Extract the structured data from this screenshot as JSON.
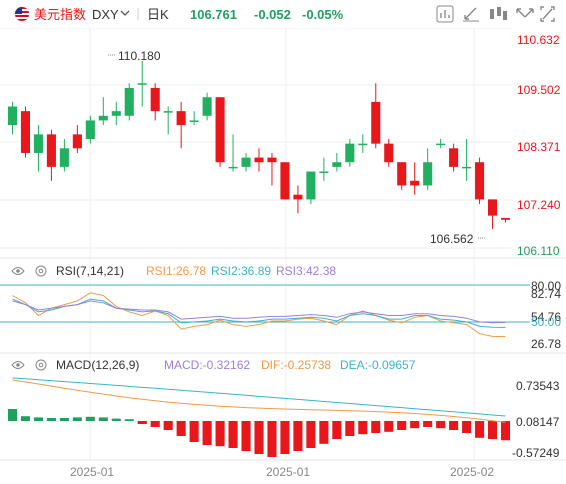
{
  "header": {
    "instrument_name": "美元指数",
    "symbol": "DXY",
    "period": "日K",
    "price": "106.761",
    "change": "-0.052",
    "change_pct": "-0.05%",
    "icons": [
      "flag-us-icon",
      "chevron-down-icon",
      "indicator-icon",
      "drawing-icon",
      "settings-icon",
      "expand-icon",
      "fullscreen-icon"
    ]
  },
  "price_panel": {
    "y_ticks": [
      "110.632",
      "109.502",
      "108.371",
      "107.240",
      "106.110"
    ],
    "high_label": "110.180",
    "low_label": "106.562"
  },
  "rsi_panel": {
    "title": "RSI(7,14,21)",
    "rsi1": "RSI1:26.78",
    "rsi2": "RSI2:36.89",
    "rsi3": "RSI3:42.38",
    "levels": [
      "80.00",
      "82.74",
      "54.76",
      "50.00",
      "26.78"
    ]
  },
  "macd_panel": {
    "title": "MACD(12,26,9)",
    "macd": "MACD:-0.32162",
    "dif": "DIF:-0.25738",
    "dea": "DEA:-0.09657",
    "levels": [
      "0.73543",
      "0.08147",
      "-0.57249"
    ]
  },
  "x_axis": {
    "labels": [
      "2025-01",
      "2025-01",
      "2025-02"
    ]
  },
  "colors": {
    "up": "#20a060",
    "down": "#e8171b",
    "price_up": "#20b060",
    "price_down": "#e8171b",
    "rsi1": "#f29a4a",
    "rsi2": "#3bb4c8",
    "rsi3": "#9b80d9",
    "dif": "#f29a4a",
    "dea": "#3bb4c8",
    "axis_text": "#444444",
    "grid": "#efefef"
  },
  "chart_data": [
    {
      "type": "candlestick",
      "title": "DXY 日K",
      "y_axis_ticks": [
        110.632,
        109.502,
        108.371,
        107.24,
        106.11
      ],
      "high_marker": 110.18,
      "low_marker": 106.562,
      "candles": [
        {
          "o": 108.8,
          "c": 109.2,
          "h": 109.3,
          "l": 108.6
        },
        {
          "o": 109.1,
          "c": 108.2,
          "h": 109.2,
          "l": 108.1
        },
        {
          "o": 108.2,
          "c": 108.6,
          "h": 108.8,
          "l": 107.8
        },
        {
          "o": 108.6,
          "c": 107.9,
          "h": 108.7,
          "l": 107.6
        },
        {
          "o": 107.9,
          "c": 108.3,
          "h": 108.5,
          "l": 107.8
        },
        {
          "o": 108.6,
          "c": 108.3,
          "h": 108.8,
          "l": 108.2
        },
        {
          "o": 108.5,
          "c": 108.9,
          "h": 109.0,
          "l": 108.4
        },
        {
          "o": 108.9,
          "c": 109.0,
          "h": 109.4,
          "l": 108.8
        },
        {
          "o": 109.0,
          "c": 109.1,
          "h": 109.3,
          "l": 108.8
        },
        {
          "o": 109.0,
          "c": 109.6,
          "h": 109.7,
          "l": 108.9
        },
        {
          "o": 109.7,
          "c": 109.7,
          "h": 110.18,
          "l": 109.2
        },
        {
          "o": 109.6,
          "c": 109.1,
          "h": 109.7,
          "l": 108.9
        },
        {
          "o": 109.1,
          "c": 109.1,
          "h": 109.2,
          "l": 108.6
        },
        {
          "o": 109.1,
          "c": 108.8,
          "h": 109.3,
          "l": 108.3
        },
        {
          "o": 108.9,
          "c": 108.9,
          "h": 109.1,
          "l": 108.8
        },
        {
          "o": 109.0,
          "c": 109.4,
          "h": 109.5,
          "l": 108.9
        },
        {
          "o": 109.4,
          "c": 108.0,
          "h": 109.4,
          "l": 107.9
        },
        {
          "o": 107.9,
          "c": 107.9,
          "h": 108.6,
          "l": 107.8
        },
        {
          "o": 107.9,
          "c": 108.1,
          "h": 108.2,
          "l": 107.8
        },
        {
          "o": 108.1,
          "c": 108.0,
          "h": 108.3,
          "l": 107.8
        },
        {
          "o": 108.1,
          "c": 108.0,
          "h": 108.2,
          "l": 107.5
        },
        {
          "o": 108.0,
          "c": 107.2,
          "h": 108.0,
          "l": 107.2
        },
        {
          "o": 107.3,
          "c": 107.2,
          "h": 107.5,
          "l": 106.9
        },
        {
          "o": 107.2,
          "c": 107.8,
          "h": 107.8,
          "l": 107.1
        },
        {
          "o": 107.8,
          "c": 107.8,
          "h": 108.1,
          "l": 107.6
        },
        {
          "o": 107.9,
          "c": 108.0,
          "h": 108.2,
          "l": 107.8
        },
        {
          "o": 108.0,
          "c": 108.4,
          "h": 108.5,
          "l": 107.9
        },
        {
          "o": 108.4,
          "c": 108.4,
          "h": 108.6,
          "l": 108.2
        },
        {
          "o": 109.3,
          "c": 108.4,
          "h": 109.7,
          "l": 108.3
        },
        {
          "o": 108.4,
          "c": 108.0,
          "h": 108.5,
          "l": 107.9
        },
        {
          "o": 108.0,
          "c": 107.5,
          "h": 108.0,
          "l": 107.4
        },
        {
          "o": 107.6,
          "c": 107.5,
          "h": 108.0,
          "l": 107.3
        },
        {
          "o": 107.5,
          "c": 108.0,
          "h": 108.3,
          "l": 107.4
        },
        {
          "o": 108.4,
          "c": 108.4,
          "h": 108.5,
          "l": 108.3
        },
        {
          "o": 108.3,
          "c": 107.9,
          "h": 108.4,
          "l": 107.8
        },
        {
          "o": 107.9,
          "c": 107.9,
          "h": 108.5,
          "l": 107.6
        },
        {
          "o": 108.0,
          "c": 107.2,
          "h": 108.1,
          "l": 107.1
        },
        {
          "o": 107.2,
          "c": 106.85,
          "h": 107.2,
          "l": 106.562
        },
        {
          "o": 106.8,
          "c": 106.761,
          "h": 106.8,
          "l": 106.7
        }
      ]
    },
    {
      "type": "line",
      "title": "RSI(7,14,21)",
      "series": [
        {
          "name": "RSI1",
          "values": [
            72,
            64,
            50,
            58,
            62,
            66,
            75,
            72,
            60,
            54,
            50,
            55,
            50,
            35,
            38,
            40,
            45,
            40,
            38,
            40,
            44,
            44,
            46,
            47,
            44,
            40,
            50,
            55,
            50,
            45,
            42,
            48,
            50,
            44,
            42,
            40,
            30,
            27,
            26.78
          ]
        },
        {
          "name": "RSI2",
          "values": [
            68,
            62,
            54,
            56,
            60,
            62,
            68,
            66,
            58,
            56,
            54,
            55,
            52,
            42,
            43,
            44,
            46,
            44,
            43,
            44,
            46,
            46,
            47,
            48,
            47,
            44,
            50,
            52,
            50,
            46,
            46,
            50,
            50,
            46,
            45,
            43,
            38,
            37,
            36.89
          ]
        },
        {
          "name": "RSI3",
          "values": [
            66,
            62,
            56,
            58,
            60,
            62,
            66,
            64,
            58,
            57,
            56,
            56,
            54,
            46,
            47,
            48,
            49,
            47,
            47,
            48,
            49,
            49,
            50,
            51,
            50,
            48,
            52,
            54,
            52,
            50,
            50,
            52,
            52,
            50,
            49,
            47,
            43,
            42,
            42.38
          ]
        }
      ]
    },
    {
      "type": "bar",
      "title": "MACD(12,26,9)",
      "values": [
        0.2,
        0.08,
        0.06,
        0.05,
        0.05,
        0.06,
        0.07,
        0.06,
        0.04,
        0.03,
        -0.05,
        -0.1,
        -0.15,
        -0.25,
        -0.35,
        -0.4,
        -0.42,
        -0.45,
        -0.5,
        -0.55,
        -0.6,
        -0.55,
        -0.5,
        -0.45,
        -0.38,
        -0.3,
        -0.25,
        -0.22,
        -0.2,
        -0.18,
        -0.15,
        -0.12,
        -0.1,
        -0.12,
        -0.15,
        -0.2,
        -0.28,
        -0.3,
        -0.32162
      ]
    }
  ]
}
